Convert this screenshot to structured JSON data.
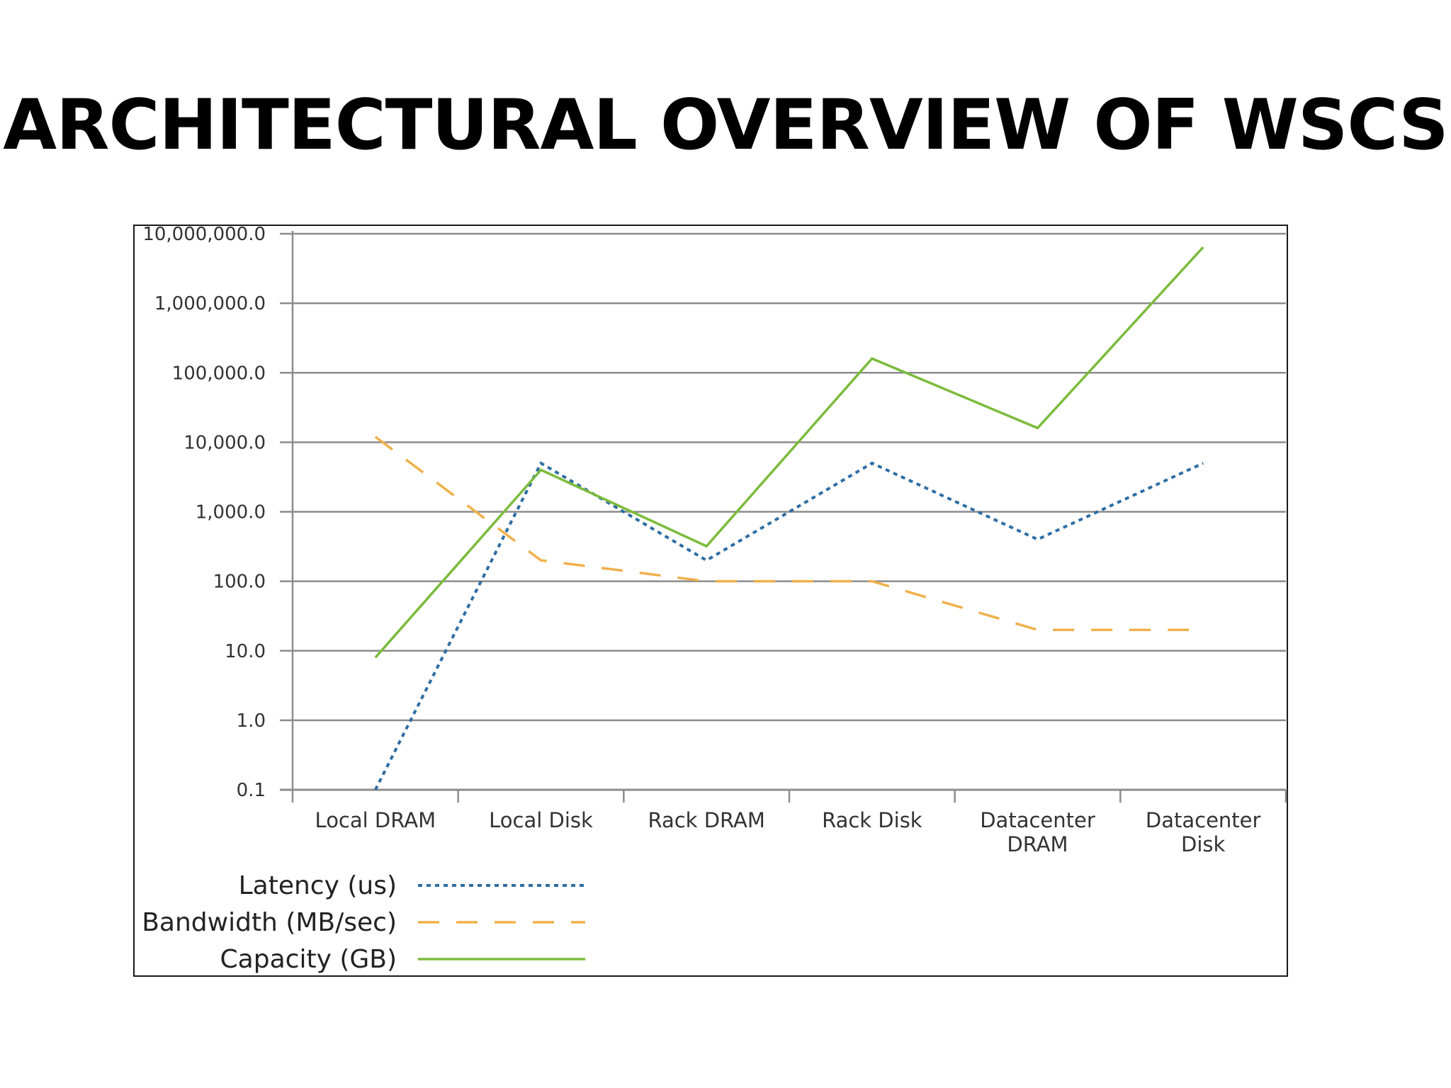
{
  "slide": {
    "title": "ARCHITECTURAL OVERVIEW OF WSCS"
  },
  "colors": {
    "latency": "#2e6da4",
    "bandwidth": "#f0b04a",
    "capacity": "#7bbb3c",
    "grid": "#8c8c8c",
    "frame": "#1a1a1a"
  },
  "chart_data": {
    "type": "line",
    "yscale": "log",
    "ylim": [
      0.1,
      10000000
    ],
    "yticks": [
      {
        "value": 10000000,
        "label": "10,000,000.0"
      },
      {
        "value": 1000000,
        "label": "1,000,000.0"
      },
      {
        "value": 100000,
        "label": "100,000.0"
      },
      {
        "value": 10000,
        "label": "10,000.0"
      },
      {
        "value": 1000,
        "label": "1,000.0"
      },
      {
        "value": 100,
        "label": "100.0"
      },
      {
        "value": 10,
        "label": "10.0"
      },
      {
        "value": 1,
        "label": "1.0"
      },
      {
        "value": 0.1,
        "label": "0.1"
      }
    ],
    "categories": [
      [
        "Local DRAM"
      ],
      [
        "Local Disk"
      ],
      [
        "Rack DRAM"
      ],
      [
        "Rack Disk"
      ],
      [
        "Datacenter",
        "DRAM"
      ],
      [
        "Datacenter",
        "Disk"
      ]
    ],
    "series": [
      {
        "key": "latency",
        "name": "Latency (us)",
        "style": "dotted",
        "values": [
          0.1,
          5000,
          200,
          5000,
          400,
          5000
        ]
      },
      {
        "key": "bandwidth",
        "name": "Bandwidth (MB/sec)",
        "style": "dashed",
        "values": [
          12000,
          200,
          100,
          100,
          20,
          20
        ]
      },
      {
        "key": "capacity",
        "name": "Capacity (GB)",
        "style": "solid",
        "values": [
          8,
          4000,
          320,
          160000,
          16000,
          6400000
        ]
      }
    ],
    "legend_position": "bottom-left",
    "grid": true
  }
}
